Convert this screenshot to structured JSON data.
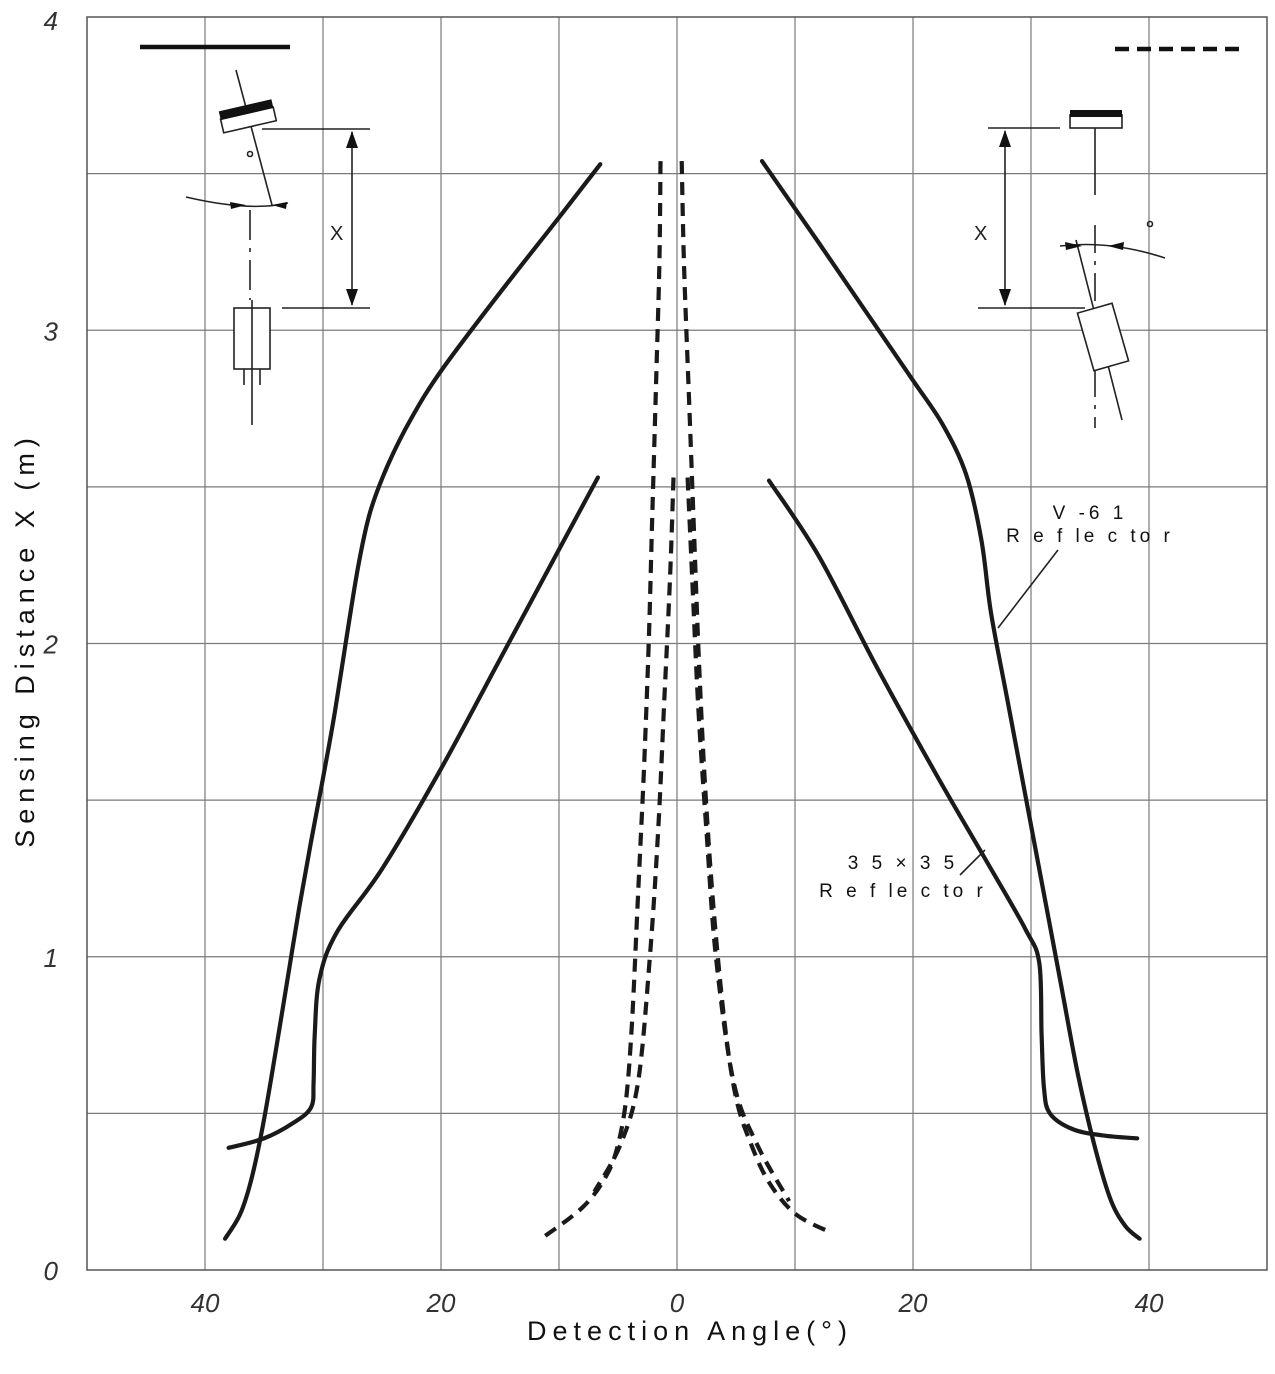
{
  "chart_data": {
    "type": "line",
    "title": "",
    "xlabel": "Detection Angle(°)",
    "ylabel": "Sensing Distance X (m)",
    "xlim": [
      -50,
      50
    ],
    "ylim": [
      0,
      4
    ],
    "x_ticks": [
      -40,
      -20,
      0,
      20,
      40
    ],
    "x_tick_labels": [
      "40",
      "20",
      "0",
      "20",
      "40"
    ],
    "y_ticks": [
      0,
      1,
      2,
      3,
      4
    ],
    "y_tick_labels": [
      "0",
      "1",
      "2",
      "3",
      "4"
    ],
    "grid": true,
    "series": [
      {
        "style": "solid",
        "points": [
          [
            -6.5,
            3.53
          ],
          [
            -10,
            3.36
          ],
          [
            -15,
            3.12
          ],
          [
            -20,
            2.87
          ],
          [
            -22.5,
            2.72
          ],
          [
            -24.5,
            2.57
          ],
          [
            -26,
            2.42
          ],
          [
            -27,
            2.25
          ],
          [
            -28,
            2.02
          ],
          [
            -29,
            1.78
          ],
          [
            -30,
            1.57
          ],
          [
            -31,
            1.37
          ],
          [
            -32,
            1.16
          ],
          [
            -33,
            0.93
          ],
          [
            -34,
            0.7
          ],
          [
            -35,
            0.48
          ],
          [
            -36,
            0.3
          ],
          [
            -37,
            0.18
          ],
          [
            -38.3,
            0.1
          ]
        ]
      },
      {
        "style": "solid",
        "points": [
          [
            7.2,
            3.54
          ],
          [
            12,
            3.28
          ],
          [
            16,
            3.06
          ],
          [
            20,
            2.84
          ],
          [
            22.5,
            2.7
          ],
          [
            24.5,
            2.54
          ],
          [
            25.8,
            2.33
          ],
          [
            26.6,
            2.1
          ],
          [
            28,
            1.82
          ],
          [
            29.5,
            1.52
          ],
          [
            31,
            1.22
          ],
          [
            32.5,
            0.92
          ],
          [
            34,
            0.62
          ],
          [
            35.5,
            0.38
          ],
          [
            36.8,
            0.22
          ],
          [
            38,
            0.14
          ],
          [
            39.2,
            0.1
          ]
        ]
      },
      {
        "style": "solid",
        "points": [
          [
            -6.7,
            2.53
          ],
          [
            -10,
            2.3
          ],
          [
            -15,
            1.95
          ],
          [
            -20,
            1.6
          ],
          [
            -25,
            1.28
          ],
          [
            -28.8,
            1.08
          ],
          [
            -30.3,
            0.93
          ],
          [
            -30.7,
            0.75
          ],
          [
            -30.8,
            0.6
          ],
          [
            -31,
            0.52
          ],
          [
            -32.5,
            0.47
          ],
          [
            -35,
            0.42
          ],
          [
            -38,
            0.39
          ]
        ]
      },
      {
        "style": "solid",
        "points": [
          [
            7.8,
            2.52
          ],
          [
            12,
            2.28
          ],
          [
            17,
            1.92
          ],
          [
            22,
            1.58
          ],
          [
            26,
            1.32
          ],
          [
            29.5,
            1.09
          ],
          [
            30.7,
            0.98
          ],
          [
            30.9,
            0.75
          ],
          [
            31.1,
            0.58
          ],
          [
            31.6,
            0.5
          ],
          [
            33.5,
            0.45
          ],
          [
            36,
            0.43
          ],
          [
            39,
            0.42
          ]
        ]
      },
      {
        "style": "dashed",
        "points": [
          [
            -1.4,
            3.54
          ],
          [
            -1.5,
            3.2
          ],
          [
            -1.8,
            2.8
          ],
          [
            -2.1,
            2.4
          ],
          [
            -2.4,
            2.0
          ],
          [
            -2.8,
            1.6
          ],
          [
            -3.3,
            1.2
          ],
          [
            -3.8,
            0.8
          ],
          [
            -4.3,
            0.55
          ],
          [
            -5,
            0.4
          ],
          [
            -6,
            0.3
          ],
          [
            -8,
            0.2
          ],
          [
            -11.5,
            0.1
          ]
        ]
      },
      {
        "style": "dashed",
        "points": [
          [
            0.4,
            3.54
          ],
          [
            0.6,
            3.2
          ],
          [
            1.0,
            2.8
          ],
          [
            1.4,
            2.4
          ],
          [
            1.8,
            2.0
          ],
          [
            2.3,
            1.6
          ],
          [
            3.0,
            1.2
          ],
          [
            4.0,
            0.8
          ],
          [
            5.0,
            0.55
          ],
          [
            6.3,
            0.4
          ],
          [
            7.8,
            0.28
          ],
          [
            10,
            0.18
          ],
          [
            13,
            0.12
          ]
        ]
      },
      {
        "style": "dashed",
        "points": [
          [
            -0.3,
            2.53
          ],
          [
            -0.6,
            2.2
          ],
          [
            -1.1,
            1.8
          ],
          [
            -1.6,
            1.4
          ],
          [
            -2.3,
            1.0
          ],
          [
            -3.3,
            0.6
          ],
          [
            -4.8,
            0.4
          ],
          [
            -7,
            0.25
          ]
        ]
      },
      {
        "style": "dashed",
        "points": [
          [
            0.9,
            2.53
          ],
          [
            1.3,
            2.2
          ],
          [
            1.8,
            1.8
          ],
          [
            2.5,
            1.4
          ],
          [
            3.3,
            1.0
          ],
          [
            4.8,
            0.6
          ],
          [
            6.8,
            0.4
          ],
          [
            9.5,
            0.22
          ]
        ]
      }
    ],
    "annotations": [
      {
        "lines": [
          "V -6 1",
          "R e f le c to r"
        ]
      },
      {
        "lines": [
          "3 5 × 3 5",
          "R e f le c to r"
        ]
      }
    ]
  },
  "insets": {
    "left_marker": "X",
    "right_marker": "X",
    "degree_symbol": "°"
  }
}
